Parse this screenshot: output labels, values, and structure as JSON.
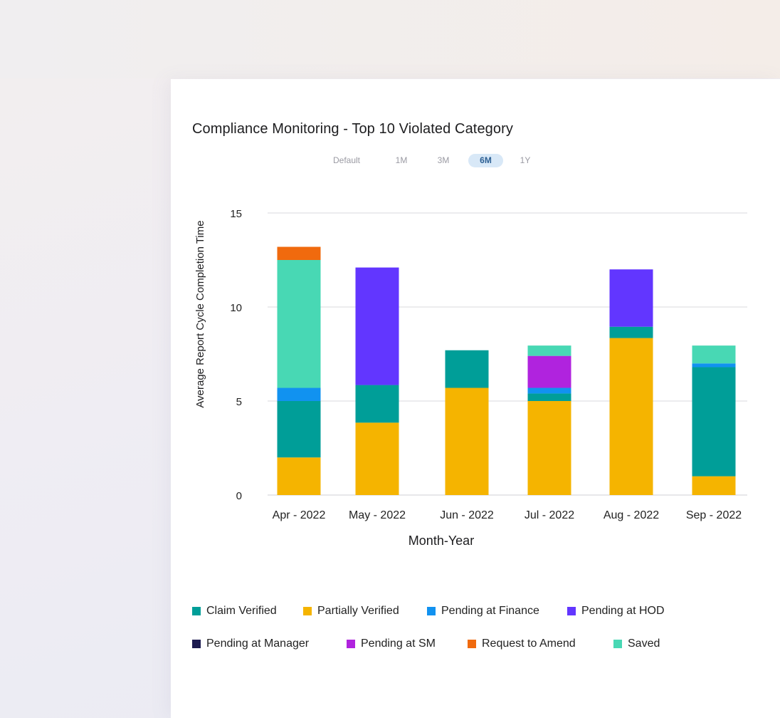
{
  "title": "Compliance Monitoring - Top 10 Violated Category",
  "range_selector": {
    "options": [
      "Default",
      "1M",
      "3M",
      "6M",
      "1Y"
    ],
    "selected": "6M"
  },
  "chart_data": {
    "type": "bar",
    "stacked": true,
    "title": "Compliance Monitoring - Top 10 Violated Category",
    "xlabel": "Month-Year",
    "ylabel": "Average Report Cycle Completion Time",
    "ylim": [
      0,
      15
    ],
    "yticks": [
      0,
      5,
      10,
      15
    ],
    "grid": true,
    "legend_position": "bottom",
    "categories": [
      "Apr - 2022",
      "May - 2022",
      "Jun - 2022",
      "Jul - 2022",
      "Aug - 2022",
      "Sep - 2022"
    ],
    "series": [
      {
        "name": "Claim Verified",
        "color": "#009e98",
        "values": [
          3.0,
          2.0,
          2.0,
          0.4,
          0.6,
          5.8
        ]
      },
      {
        "name": "Partially Verified",
        "color": "#f5b400",
        "values": [
          2.0,
          3.85,
          5.7,
          5.0,
          8.35,
          1.0
        ]
      },
      {
        "name": "Pending at Finance",
        "color": "#1192f0",
        "values": [
          0.7,
          0,
          0,
          0.3,
          0,
          0.2
        ]
      },
      {
        "name": "Pending at HOD",
        "color": "#6236ff",
        "values": [
          0,
          6.25,
          0,
          0,
          3.05,
          0
        ]
      },
      {
        "name": "Pending at Manager",
        "color": "#1c1a4f",
        "values": [
          0,
          0,
          0,
          0,
          0,
          0
        ]
      },
      {
        "name": "Pending at SM",
        "color": "#b023de",
        "values": [
          0,
          0,
          0,
          1.7,
          0,
          0
        ]
      },
      {
        "name": "Request to Amend",
        "color": "#f06a0e",
        "values": [
          0.7,
          0,
          0,
          0,
          0,
          0
        ]
      },
      {
        "name": "Saved",
        "color": "#48d8b4",
        "values": [
          6.8,
          0,
          0,
          0.55,
          0,
          0.95
        ]
      }
    ],
    "stack_order": [
      "Partially Verified",
      "Claim Verified",
      "Pending at Finance",
      "Pending at HOD",
      "Pending at SM",
      "Saved",
      "Request to Amend"
    ]
  }
}
